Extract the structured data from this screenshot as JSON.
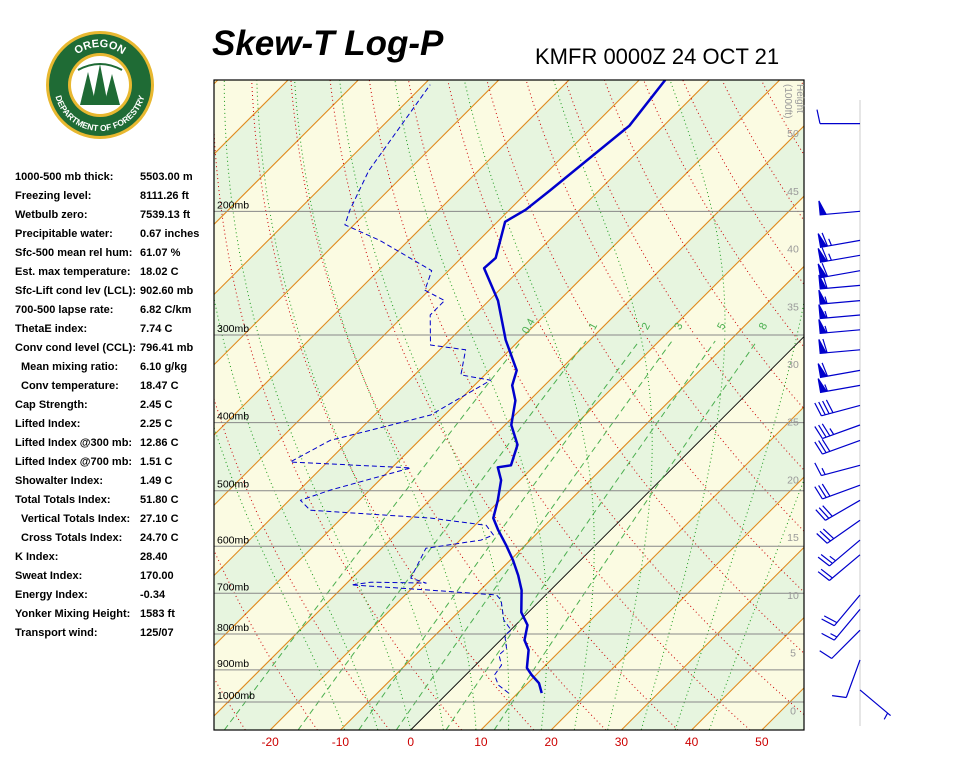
{
  "logo": {
    "top": "OREGON",
    "bottom": "DEPARTMENT OF FORESTRY"
  },
  "stats": [
    {
      "label": "1000-500 mb thick:",
      "value": "5503.00 m"
    },
    {
      "label": "Freezing level:",
      "value": "8111.26 ft"
    },
    {
      "label": "Wetbulb zero:",
      "value": "7539.13 ft"
    },
    {
      "label": "Precipitable water:",
      "value": "0.67 inches"
    },
    {
      "label": "Sfc-500 mean rel hum:",
      "value": "61.07 %"
    },
    {
      "label": "Est. max temperature:",
      "value": "18.02 C"
    },
    {
      "label": "Sfc-Lift cond lev (LCL):",
      "value": "902.60 mb"
    },
    {
      "label": "700-500 lapse rate:",
      "value": "6.82 C/km"
    },
    {
      "label": "ThetaE index:",
      "value": "7.74 C"
    },
    {
      "label": "Conv cond level (CCL):",
      "value": "796.41 mb"
    },
    {
      "label": "Mean mixing ratio:",
      "value": "6.10 g/kg"
    },
    {
      "label": "Conv temperature:",
      "value": "18.47 C"
    },
    {
      "label": "Cap Strength:",
      "value": "2.45 C"
    },
    {
      "label": "Lifted Index:",
      "value": "2.25 C"
    },
    {
      "label": "Lifted Index @300 mb:",
      "value": "12.86 C"
    },
    {
      "label": "Lifted Index @700 mb:",
      "value": "1.51 C"
    },
    {
      "label": "Showalter Index:",
      "value": "1.49 C"
    },
    {
      "label": "Total Totals Index:",
      "value": "51.80 C"
    },
    {
      "label": "Vertical Totals Index:",
      "value": "27.10 C"
    },
    {
      "label": "Cross Totals Index:",
      "value": "24.70 C"
    },
    {
      "label": "K Index:",
      "value": "28.40"
    },
    {
      "label": "Sweat Index:",
      "value": "170.00"
    },
    {
      "label": "Energy Index:",
      "value": "-0.34"
    },
    {
      "label": "Yonker Mixing Height:",
      "value": "1583 ft"
    },
    {
      "label": "Transport wind:",
      "value": "125/07"
    }
  ],
  "chart_data": {
    "type": "skewt",
    "title": "Skew-T Log-P",
    "subtitle": "KMFR 0000Z 24 OCT 21",
    "xlim": [
      -28,
      56
    ],
    "xticks": [
      -20,
      -10,
      0,
      10,
      20,
      30,
      40,
      50
    ],
    "ylim": [
      1096,
      130
    ],
    "log_y": true,
    "yticks": [
      {
        "value": 200,
        "label": "200mb"
      },
      {
        "value": 300,
        "label": "300mb"
      },
      {
        "value": 400,
        "label": "400mb"
      },
      {
        "value": 500,
        "label": "500mb"
      },
      {
        "value": 600,
        "label": "600mb"
      },
      {
        "value": 700,
        "label": "700mb"
      },
      {
        "value": 800,
        "label": "800mb"
      },
      {
        "value": 900,
        "label": "900mb"
      },
      {
        "value": 1000,
        "label": "1000mb"
      }
    ],
    "mixing_ratio_ticks": [
      0.4,
      1,
      2,
      3,
      5,
      8
    ],
    "height_axis": {
      "title": "Height",
      "unit": "(1000ft)",
      "lim": [
        -1.7,
        54.6
      ],
      "ticks": [
        0,
        5,
        10,
        15,
        20,
        25,
        30,
        35,
        40,
        45,
        50
      ]
    },
    "series": [
      {
        "color": "#0000cc",
        "linestyle": "solid",
        "pressure": [
          971,
          940,
          915,
          894,
          843,
          816,
          777,
          745,
          693,
          660,
          628,
          598,
          569,
          547,
          516,
          483,
          463,
          460,
          430,
          403,
          372,
          354,
          337,
          305,
          268,
          241,
          233,
          207,
          199,
          187,
          151,
          130
        ],
        "values": [
          13.4,
          11.6,
          9.4,
          7.7,
          5.4,
          3.4,
          1.7,
          -1.0,
          -4.1,
          -6.7,
          -9.6,
          -12.7,
          -16.0,
          -18.4,
          -20.3,
          -22.7,
          -25.0,
          -23.4,
          -25.4,
          -29.1,
          -32.0,
          -34.6,
          -36.1,
          -42.0,
          -48.7,
          -55.3,
          -55.1,
          -58.9,
          -57.7,
          -57.0,
          -54.9,
          -56.3
        ]
      },
      {
        "color": "#0000cc",
        "linestyle": "dashed",
        "pressure": [
          971,
          946,
          915,
          886,
          857,
          838,
          803,
          790,
          764,
          716,
          704,
          693,
          681,
          675,
          677,
          666,
          604,
          588,
          578,
          560,
          547,
          533,
          516,
          499,
          464,
          455,
          424,
          390,
          348,
          342,
          315,
          310,
          281,
          268,
          259,
          243,
          220,
          209,
          199,
          175,
          132
        ],
        "values": [
          8.7,
          6.1,
          4.1,
          3.7,
          1.9,
          2.0,
          -0.1,
          0.1,
          -2.4,
          -5.6,
          -7.0,
          -17.0,
          -29.1,
          -26.7,
          -18.7,
          -21.6,
          -23.7,
          -17.0,
          -16.0,
          -18.4,
          -27.3,
          -45.6,
          -48.4,
          -45.6,
          -37.3,
          -55.3,
          -52.7,
          -42.0,
          -38.4,
          -43.4,
          -46.3,
          -52.0,
          -56.3,
          -56.3,
          -60.6,
          -62.4,
          -74.1,
          -81.3,
          -82.7,
          -85.6,
          -89.1
        ]
      }
    ],
    "winds": {
      "pressure": [
        150,
        200,
        220,
        231,
        243,
        255,
        268,
        281,
        295,
        315,
        337,
        354,
        378,
        403,
        424,
        460,
        491,
        516,
        551,
        588,
        617,
        704,
        738,
        790,
        871,
        961
      ],
      "direction": [
        270,
        265,
        260,
        260,
        260,
        265,
        265,
        265,
        265,
        265,
        260,
        260,
        255,
        250,
        250,
        255,
        250,
        240,
        235,
        230,
        230,
        220,
        220,
        225,
        200,
        130
      ],
      "speed": [
        10,
        50,
        65,
        65,
        60,
        60,
        55,
        55,
        55,
        60,
        60,
        55,
        40,
        35,
        30,
        15,
        30,
        30,
        30,
        25,
        20,
        20,
        15,
        10,
        10,
        5
      ]
    }
  }
}
